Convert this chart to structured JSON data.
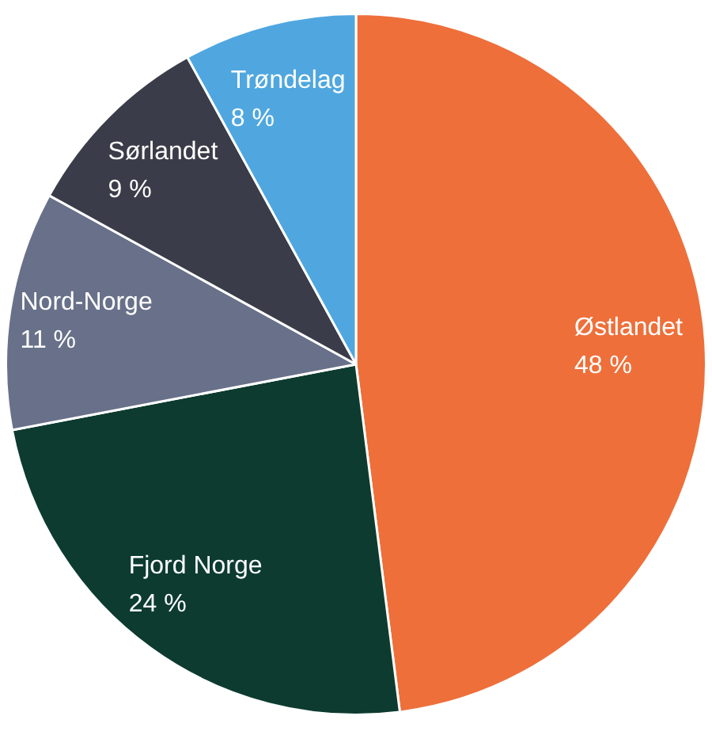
{
  "chart_data": {
    "type": "pie",
    "categories": [
      "Østlandet",
      "Fjord Norge",
      "Nord-Norge",
      "Sørlandet",
      "Trøndelag"
    ],
    "values": [
      48,
      24,
      11,
      9,
      8
    ],
    "colors": [
      "#ee6f3a",
      "#0d3b30",
      "#687189",
      "#3a3c49",
      "#50a7df"
    ],
    "value_labels": [
      "48 %",
      "24 %",
      "11 %",
      "9 %",
      "8 %"
    ]
  }
}
